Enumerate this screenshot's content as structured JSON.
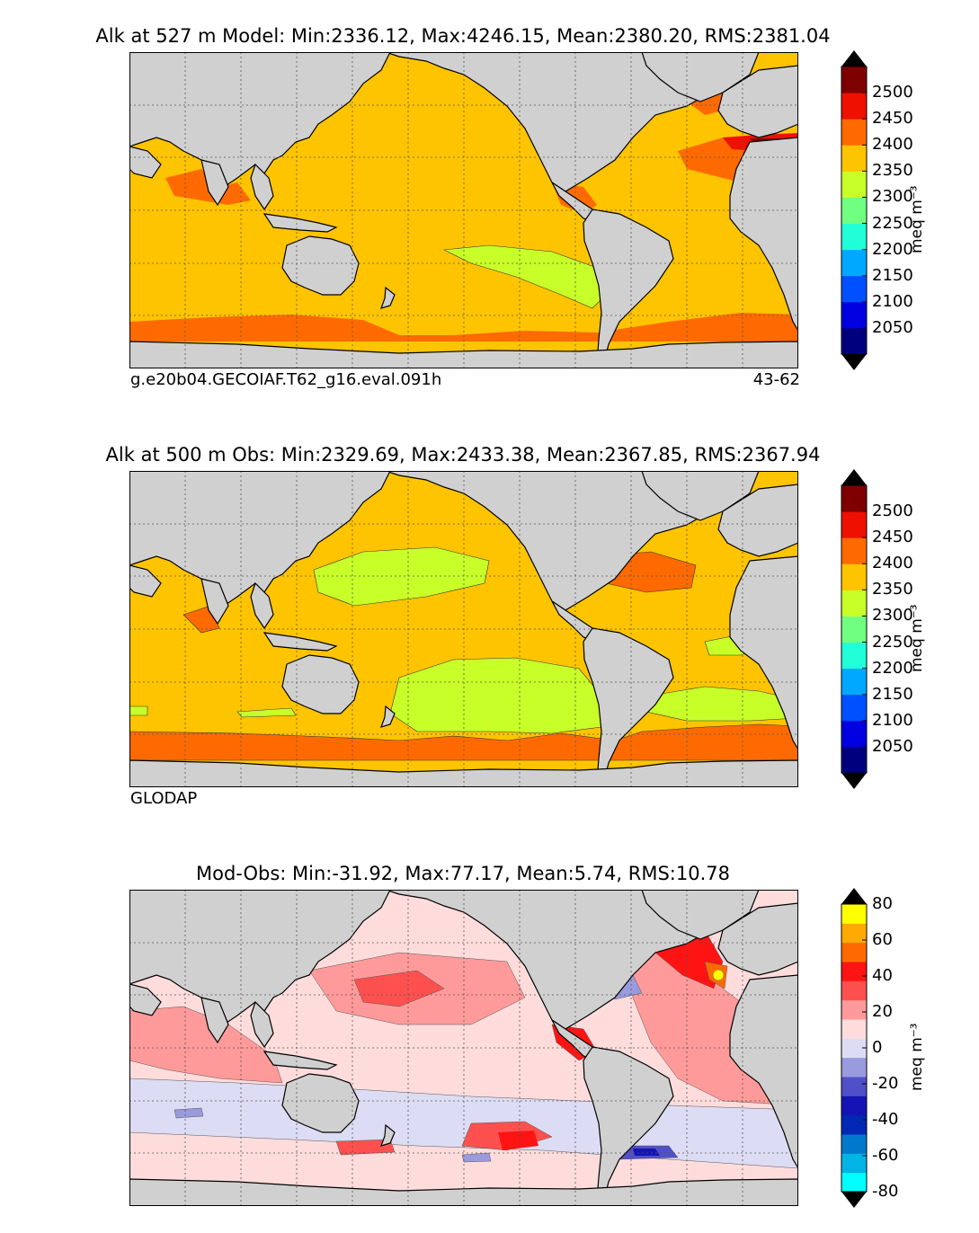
{
  "figure": {
    "panels": [
      {
        "id": "model",
        "title": "Alk at 527 m Model: Min:2336.12, Max:4246.15, Mean:2380.20, RMS:2381.04",
        "left_note": "g.e20b04.GECOIAF.T62_g16.eval.091h",
        "right_note": "43-62",
        "colorbar": {
          "unit_label": "meq m⁻³",
          "ticks": [
            "2050",
            "2100",
            "2150",
            "2200",
            "2250",
            "2300",
            "2350",
            "2400",
            "2450",
            "2500"
          ],
          "colors": [
            "#00007f",
            "#0000e0",
            "#0050ff",
            "#00a8ff",
            "#20ffd8",
            "#70ff80",
            "#c8ff28",
            "#ffc400",
            "#ff6a00",
            "#ee1000",
            "#7f0000"
          ],
          "extend_colors": {
            "low": "#000000",
            "high": "#000000"
          }
        }
      },
      {
        "id": "obs",
        "title": "Alk at 500 m Obs: Min:2329.69, Max:2433.38, Mean:2367.85, RMS:2367.94",
        "left_note": "GLODAP",
        "colorbar": {
          "unit_label": "meq m⁻³",
          "ticks": [
            "2050",
            "2100",
            "2150",
            "2200",
            "2250",
            "2300",
            "2350",
            "2400",
            "2450",
            "2500"
          ],
          "colors": [
            "#00007f",
            "#0000e0",
            "#0050ff",
            "#00a8ff",
            "#20ffd8",
            "#70ff80",
            "#c8ff28",
            "#ffc400",
            "#ff6a00",
            "#ee1000",
            "#7f0000"
          ],
          "extend_colors": {
            "low": "#000000",
            "high": "#000000"
          }
        }
      },
      {
        "id": "diff",
        "title": "Mod-Obs: Min:-31.92, Max:77.17, Mean:5.74, RMS:10.78",
        "colorbar": {
          "unit_label": "meq m⁻³",
          "ticks": [
            "-80",
            "-60",
            "-40",
            "-20",
            "0",
            "20",
            "40",
            "60",
            "80"
          ],
          "colors": [
            "#00ffff",
            "#00b4e6",
            "#0078cc",
            "#0028b4",
            "#1414b4",
            "#5050c8",
            "#9a9ade",
            "#dcdcf4",
            "#ffdcdc",
            "#ff9a9a",
            "#ff5050",
            "#ff1414",
            "#ff6a00",
            "#ffaa00",
            "#ffff00"
          ],
          "extend_colors": {
            "low": "#000000",
            "high": "#000000"
          }
        }
      }
    ]
  },
  "chart_data": [
    {
      "type": "heatmap",
      "title": "Alk at 527 m Model: Min:2336.12, Max:4246.15, Mean:2380.20, RMS:2381.04",
      "variable": "Alk",
      "depth": "527 m",
      "source": "Model",
      "stats": {
        "min": 2336.12,
        "max": 4246.15,
        "mean": 2380.2,
        "rms": 2381.04
      },
      "colorbar_levels": [
        2050,
        2100,
        2150,
        2200,
        2250,
        2300,
        2350,
        2400,
        2450,
        2500
      ],
      "units": "meq m^-3",
      "annotations": [
        "g.e20b04.GECOIAF.T62_g16.eval.091h",
        "43-62"
      ]
    },
    {
      "type": "heatmap",
      "title": "Alk at 500 m Obs: Min:2329.69, Max:2433.38, Mean:2367.85, RMS:2367.94",
      "variable": "Alk",
      "depth": "500 m",
      "source": "Obs",
      "stats": {
        "min": 2329.69,
        "max": 2433.38,
        "mean": 2367.85,
        "rms": 2367.94
      },
      "colorbar_levels": [
        2050,
        2100,
        2150,
        2200,
        2250,
        2300,
        2350,
        2400,
        2450,
        2500
      ],
      "units": "meq m^-3",
      "annotations": [
        "GLODAP"
      ]
    },
    {
      "type": "heatmap",
      "title": "Mod-Obs: Min:-31.92, Max:77.17, Mean:5.74, RMS:10.78",
      "source": "Mod-Obs",
      "stats": {
        "min": -31.92,
        "max": 77.17,
        "mean": 5.74,
        "rms": 10.78
      },
      "colorbar_levels": [
        -80,
        -60,
        -40,
        -20,
        0,
        20,
        40,
        60,
        80
      ],
      "units": "meq m^-3"
    }
  ]
}
